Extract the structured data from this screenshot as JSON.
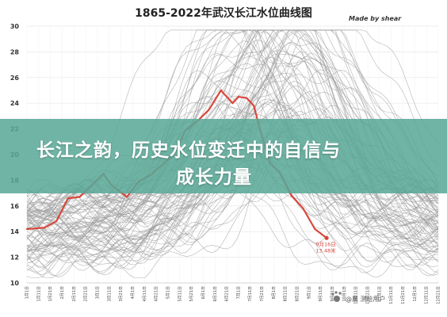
{
  "headline": {
    "line1": "长江之韵，历史水位变迁中的自信与",
    "line2": "成长力量"
  },
  "credit": "Made by shear",
  "chart_data": {
    "type": "line",
    "title": "1865-2022年武汉长江水位曲线图",
    "xlabel": "",
    "ylabel": "",
    "ylim": [
      10,
      30
    ],
    "yticks": [
      10,
      12,
      14,
      16,
      18,
      20,
      22,
      24,
      26,
      28,
      30
    ],
    "grid": true,
    "x_tick_labels": [
      "1月1日",
      "1月11日",
      "1月21日",
      "2月1日",
      "2月11日",
      "2月21日",
      "3月1日",
      "3月11日",
      "3月21日",
      "4月1日",
      "4月11日",
      "4月21日",
      "5月1日",
      "5月11日",
      "5月21日",
      "6月1日",
      "6月11日",
      "6月21日",
      "7月1日",
      "7月11日",
      "7月21日",
      "8月1日",
      "8月11日",
      "8月21日",
      "9月1日",
      "9月11日",
      "9月21日",
      "10月1日",
      "10月11日",
      "10月21日",
      "11月1日",
      "11月11日",
      "11月21日",
      "12月1日",
      "12月11日",
      "12月21日"
    ],
    "series": [
      {
        "name": "2022",
        "color": "#d9473b",
        "x_index": [
          0,
          1.5,
          2.5,
          3.5,
          4.5,
          5.5,
          6.5,
          7.2,
          8.5,
          9.5,
          10.5,
          11.5,
          12.5,
          13.5,
          14.5,
          15.5,
          16.5,
          17.5,
          18,
          18.7,
          19.3,
          20,
          20.7,
          21.5,
          22.5,
          23.5,
          24.5,
          25.5
        ],
        "values": [
          14.2,
          14.3,
          14.8,
          16.6,
          16.7,
          17.6,
          18.5,
          17.6,
          16.7,
          17.9,
          18.4,
          19.2,
          20.0,
          21.9,
          22.6,
          23.5,
          25.0,
          24.0,
          24.5,
          24.4,
          23.8,
          21.4,
          19.3,
          18.6,
          16.8,
          15.8,
          14.2,
          13.5
        ]
      }
    ],
    "annotation": {
      "date": "9月16日",
      "value": "13.48米"
    },
    "background_series": "1865-2021 yearly water level curves (grey)",
    "background_color": "#9b9b9b",
    "highlight_color": "#d9473b"
  },
  "watermark": {
    "icon": "paw-icon",
    "text": "@晨 测绘用户"
  }
}
